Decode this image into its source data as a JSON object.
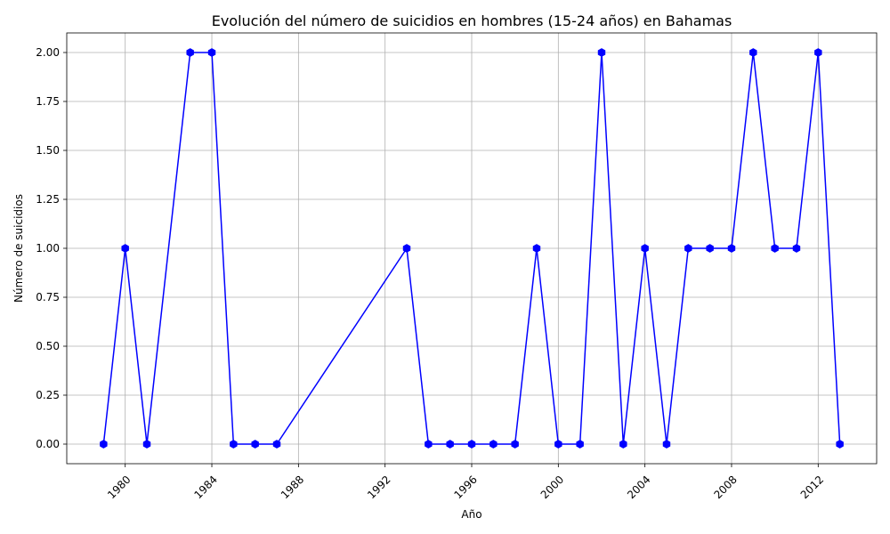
{
  "chart_data": {
    "type": "line",
    "title": "Evolución del número de suicidios en hombres (15-24 años) en Bahamas",
    "xlabel": "Año",
    "ylabel": "Número de suicidios",
    "xlim": [
      1977.3,
      2014.7
    ],
    "ylim": [
      -0.1,
      2.1
    ],
    "xticks": [
      1980,
      1984,
      1988,
      1992,
      1996,
      2000,
      2004,
      2008,
      2012
    ],
    "yticks": [
      "0.00",
      "0.25",
      "0.50",
      "0.75",
      "1.00",
      "1.25",
      "1.50",
      "1.75",
      "2.00"
    ],
    "grid": true,
    "color": "#0000ff",
    "marker": "hexagon",
    "series": [
      {
        "x": [
          1979,
          1980,
          1981,
          1983,
          1984,
          1985,
          1986,
          1987,
          1993,
          1994,
          1995,
          1996,
          1997,
          1998,
          1999,
          2000,
          2001,
          2002,
          2003,
          2004,
          2005,
          2006,
          2007,
          2008,
          2009,
          2010,
          2011,
          2012,
          2013
        ],
        "y": [
          0,
          1,
          0,
          2,
          2,
          0,
          0,
          0,
          1,
          0,
          0,
          0,
          0,
          0,
          1,
          0,
          0,
          2,
          0,
          1,
          0,
          1,
          1,
          1,
          2,
          1,
          1,
          2,
          0
        ]
      }
    ]
  }
}
